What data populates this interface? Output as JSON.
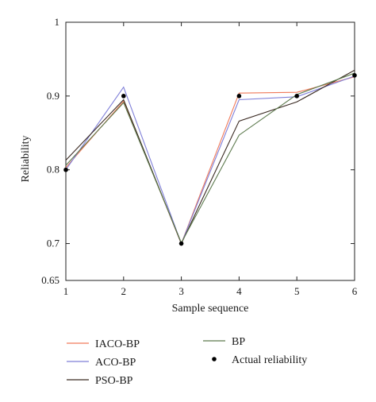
{
  "chart_data": {
    "type": "line",
    "xlabel": "Sample sequence",
    "ylabel": "Reliability",
    "xlim": [
      1,
      6
    ],
    "ylim": [
      0.65,
      1
    ],
    "xticks": [
      "1",
      "2",
      "3",
      "4",
      "5",
      "6"
    ],
    "yticks": [
      "0.65",
      "0.7",
      "0.8",
      "0.9",
      "1"
    ],
    "x": [
      1,
      2,
      3,
      4,
      5,
      6
    ],
    "legend_position": "below",
    "grid": false,
    "series": [
      {
        "name": "IACO-BP",
        "color": "#f07a5a",
        "style": "line",
        "values": [
          0.803,
          0.893,
          0.7,
          0.904,
          0.905,
          0.926
        ]
      },
      {
        "name": "ACO-BP",
        "color": "#7f7fd8",
        "style": "line",
        "values": [
          0.8,
          0.912,
          0.7,
          0.895,
          0.899,
          0.927
        ]
      },
      {
        "name": "PSO-BP",
        "color": "#3a2a22",
        "style": "line",
        "values": [
          0.813,
          0.895,
          0.7,
          0.866,
          0.892,
          0.935
        ]
      },
      {
        "name": "BP",
        "color": "#5d7a4e",
        "style": "line",
        "values": [
          0.806,
          0.891,
          0.701,
          0.847,
          0.902,
          0.931
        ]
      },
      {
        "name": "Actual reliability",
        "color": "#000000",
        "style": "markers",
        "values": [
          0.8,
          0.9,
          0.7,
          0.9,
          0.9,
          0.928
        ]
      }
    ]
  }
}
